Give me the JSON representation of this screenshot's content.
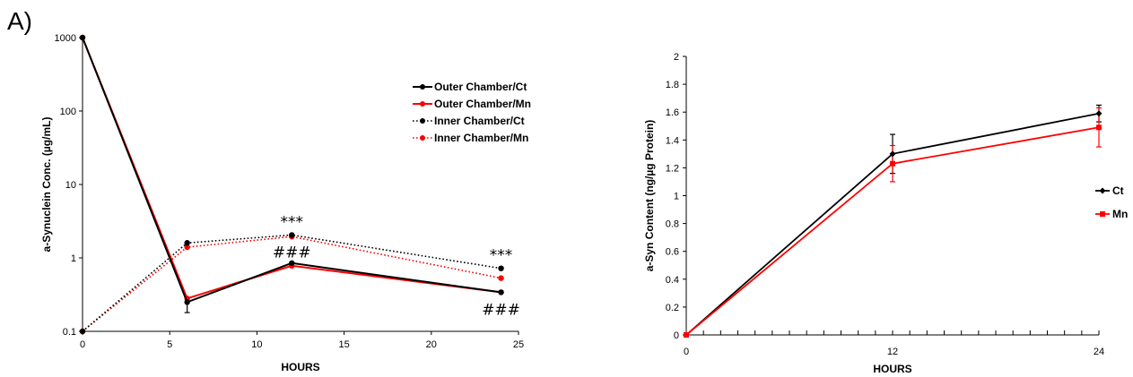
{
  "panel_label": "A)",
  "colors": {
    "black": "#000000",
    "red": "#ff0000"
  },
  "chart_data": [
    {
      "type": "line",
      "xlabel": "HOURS",
      "ylabel": "a-Synuclein Conc. (µg/mL)",
      "xlim": [
        0,
        25
      ],
      "xticks": [
        0,
        5,
        10,
        15,
        20,
        25
      ],
      "ylim": [
        0.1,
        1000
      ],
      "yscale": "log",
      "yticks": [
        0.1,
        1,
        10,
        100,
        1000
      ],
      "ytick_labels": [
        "0.1",
        "1",
        "10",
        "100",
        "1000"
      ],
      "legend_position": "right",
      "series": [
        {
          "name": "Outer Chamber/Ct",
          "color": "#000000",
          "style": "solid",
          "x": [
            0,
            6,
            12,
            24
          ],
          "y": [
            1000,
            0.25,
            0.85,
            0.34
          ],
          "err_down": [
            0,
            0.07,
            0,
            0
          ]
        },
        {
          "name": "Outer Chamber/Mn",
          "color": "#ff0000",
          "style": "solid",
          "x": [
            0,
            6,
            12,
            24
          ],
          "y": [
            1000,
            0.28,
            0.78,
            0.34
          ]
        },
        {
          "name": "Inner Chamber/Ct",
          "color": "#000000",
          "style": "dotted",
          "x": [
            0,
            6,
            12,
            24
          ],
          "y": [
            0.1,
            1.6,
            2.05,
            0.72
          ]
        },
        {
          "name": "Inner Chamber/Mn",
          "color": "#ff0000",
          "style": "dotted",
          "x": [
            0,
            6,
            12,
            24
          ],
          "y": [
            0.1,
            1.4,
            1.95,
            0.53
          ]
        }
      ],
      "annotations": [
        {
          "text": "***",
          "x": 12,
          "y": 3.1
        },
        {
          "text": "###",
          "x": 12,
          "y": 1.2
        },
        {
          "text": "***",
          "x": 24,
          "y": 1.1
        },
        {
          "text": "###",
          "x": 24,
          "y": 0.2
        }
      ]
    },
    {
      "type": "line",
      "xlabel": "HOURS",
      "ylabel": "a-Syn Content (ng/µg Protein)",
      "xlim": [
        0,
        24
      ],
      "xticks": [
        0,
        12,
        24
      ],
      "xminor_ticks": 24,
      "ylim": [
        0,
        2
      ],
      "yticks": [
        0,
        0.2,
        0.4,
        0.6,
        0.8,
        1,
        1.2,
        1.4,
        1.6,
        1.8,
        2
      ],
      "legend_position": "right",
      "series": [
        {
          "name": "Ct",
          "color": "#000000",
          "marker": "diamond",
          "x": [
            0,
            12,
            24
          ],
          "y": [
            0,
            1.3,
            1.59
          ],
          "err": [
            0,
            0.14,
            0.06
          ]
        },
        {
          "name": "Mn",
          "color": "#ff0000",
          "marker": "square",
          "x": [
            0,
            12,
            24
          ],
          "y": [
            0,
            1.23,
            1.49
          ],
          "err": [
            0,
            0.13,
            0.14
          ]
        }
      ]
    }
  ]
}
